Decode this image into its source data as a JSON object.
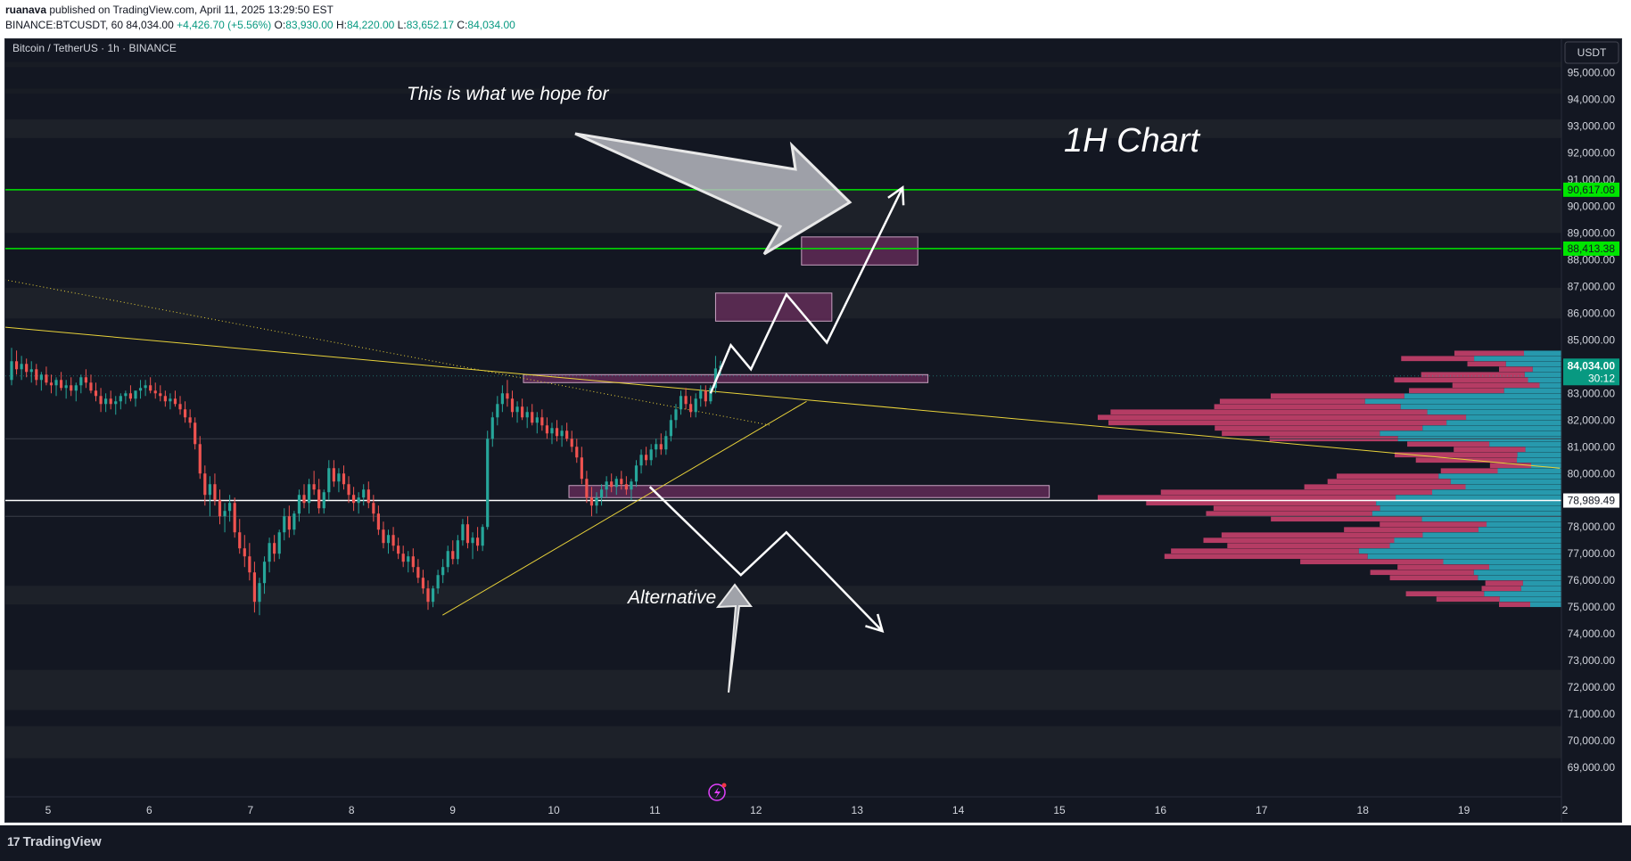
{
  "header": {
    "author": "ruanava",
    "published_text": "published on TradingView.com, April 11, 2025 13:29:50 EST",
    "symbol": "BINANCE:BTCUSDT, 60",
    "last": "84,034.00",
    "change": "+4,426.70 (+5.56%)",
    "o_label": "O:",
    "o": "83,930.00",
    "h_label": "H:",
    "h": "84,220.00",
    "l_label": "L:",
    "l": "83,652.17",
    "c_label": "C:",
    "c": "84,034.00"
  },
  "legend": {
    "title": "Bitcoin / TetherUS · 1h · BINANCE"
  },
  "currency_button": "USDT",
  "footer": {
    "brand": "TradingView",
    "mark": "17"
  },
  "annotations": {
    "hope": "This is what we hope for",
    "chart_label": "1H Chart",
    "alternative": "Alternative"
  },
  "price_tags": {
    "line1": "90,617.08",
    "line2": "88,413.38",
    "current": "84,034.00",
    "countdown": "30:12",
    "white_line": "78,989.49"
  },
  "colors": {
    "background": "#131722",
    "up": "#26a69a",
    "down": "#ef5350",
    "green_line": "#00e600",
    "trendline": "#e8d23a",
    "zone": "#6b2d5e",
    "vp_up": "#2aa7bd",
    "vp_down": "#c8406b"
  },
  "chart_data": {
    "type": "candlestick",
    "symbol": "BTCUSDT",
    "interval": "1h",
    "ylim": [
      68500,
      96000
    ],
    "y_ticks": [
      69000,
      70000,
      71000,
      72000,
      73000,
      74000,
      75000,
      76000,
      77000,
      78000,
      79000,
      80000,
      81000,
      82000,
      83000,
      84000,
      85000,
      86000,
      87000,
      88000,
      89000,
      90000,
      91000,
      92000,
      93000,
      94000,
      95000
    ],
    "y_tick_labels": [
      "69,000.00",
      "70,000.00",
      "71,000.00",
      "72,000.00",
      "73,000.00",
      "74,000.00",
      "75,000.00",
      "76,000.00",
      "77,000.00",
      "78,000.00",
      "79,000.00",
      "80,000.00",
      "81,000.00",
      "82,000.00",
      "83,000.00",
      "84,000.00",
      "85,000.00",
      "86,000.00",
      "87,000.00",
      "88,000.00",
      "89,000.00",
      "90,000.00",
      "91,000.00",
      "92,000.00",
      "93,000.00",
      "94,000.00",
      "95,000.00"
    ],
    "x_ticks": [
      "5",
      "6",
      "7",
      "8",
      "9",
      "10",
      "11",
      "12",
      "13",
      "14",
      "15",
      "16",
      "17",
      "18",
      "19",
      "2"
    ],
    "horizontal_lines": [
      {
        "value": 90617.08,
        "color": "green"
      },
      {
        "value": 88413.38,
        "color": "green"
      },
      {
        "value": 78989.49,
        "color": "white"
      }
    ],
    "zones": [
      {
        "x0": 12.45,
        "x1": 13.6,
        "y0": 87800,
        "y1": 88850
      },
      {
        "x0": 11.6,
        "x1": 12.75,
        "y0": 85700,
        "y1": 86750
      },
      {
        "x0": 9.7,
        "x1": 13.7,
        "y0": 83400,
        "y1": 83700
      },
      {
        "x0": 10.15,
        "x1": 14.9,
        "y0": 79100,
        "y1": 79550
      }
    ],
    "trendlines": [
      {
        "x0": 4.5,
        "y0": 85500,
        "x1": 19.95,
        "y1": 80200
      },
      {
        "x0": 8.9,
        "y0": 74700,
        "x1": 12.5,
        "y1": 82700
      },
      {
        "x0": 4.5,
        "y0": 87300,
        "x1": 12.15,
        "y1": 81800,
        "style": "dotted"
      }
    ],
    "projections": {
      "bullish": [
        [
          11.55,
          83000
        ],
        [
          11.75,
          84800
        ],
        [
          11.95,
          83900
        ],
        [
          12.3,
          86700
        ],
        [
          12.7,
          84900
        ],
        [
          13.45,
          90700
        ]
      ],
      "bearish": [
        [
          10.95,
          79500
        ],
        [
          11.85,
          76200
        ],
        [
          12.3,
          77800
        ],
        [
          13.25,
          74100
        ]
      ]
    },
    "candles_ohlc": [
      [
        83500,
        84700,
        83300,
        84200
      ],
      [
        84200,
        84600,
        83700,
        83900
      ],
      [
        83900,
        84400,
        83500,
        84100
      ],
      [
        84100,
        84300,
        83600,
        83800
      ],
      [
        83800,
        84200,
        83400,
        83900
      ],
      [
        83900,
        84100,
        83300,
        83500
      ],
      [
        83500,
        83800,
        83100,
        83700
      ],
      [
        83700,
        84000,
        83300,
        83400
      ],
      [
        83400,
        83700,
        83000,
        83300
      ],
      [
        83300,
        83600,
        82900,
        83500
      ],
      [
        83500,
        83800,
        83100,
        83200
      ],
      [
        83200,
        83500,
        82800,
        83300
      ],
      [
        83300,
        83600,
        82900,
        83100
      ],
      [
        83100,
        83400,
        82700,
        83300
      ],
      [
        83300,
        83700,
        83000,
        83600
      ],
      [
        83600,
        83900,
        83200,
        83400
      ],
      [
        83400,
        83700,
        83000,
        83100
      ],
      [
        83100,
        83400,
        82700,
        82900
      ],
      [
        82900,
        83200,
        82300,
        82600
      ],
      [
        82600,
        83000,
        82300,
        82800
      ],
      [
        82800,
        83100,
        82400,
        82600
      ],
      [
        82600,
        82900,
        82200,
        82700
      ],
      [
        82700,
        83000,
        82400,
        82900
      ],
      [
        82900,
        83100,
        82600,
        83000
      ],
      [
        83000,
        83300,
        82700,
        82800
      ],
      [
        82800,
        83100,
        82500,
        83100
      ],
      [
        83100,
        83500,
        82800,
        83200
      ],
      [
        83200,
        83500,
        82900,
        83300
      ],
      [
        83300,
        83600,
        83000,
        83100
      ],
      [
        83100,
        83400,
        82800,
        83000
      ],
      [
        83000,
        83300,
        82700,
        82900
      ],
      [
        82900,
        83100,
        82500,
        82700
      ],
      [
        82700,
        83000,
        82400,
        82800
      ],
      [
        82800,
        83100,
        82500,
        82600
      ],
      [
        82600,
        82900,
        82200,
        82400
      ],
      [
        82400,
        82700,
        81900,
        82100
      ],
      [
        82100,
        82400,
        81700,
        81900
      ],
      [
        81900,
        82100,
        80900,
        81100
      ],
      [
        81100,
        81400,
        79800,
        80000
      ],
      [
        80000,
        80300,
        78800,
        79200
      ],
      [
        79200,
        79900,
        78400,
        79600
      ],
      [
        79600,
        80000,
        78800,
        79000
      ],
      [
        79000,
        79400,
        78100,
        78400
      ],
      [
        78400,
        78900,
        77800,
        78600
      ],
      [
        78600,
        79200,
        78200,
        78900
      ],
      [
        78900,
        79100,
        77600,
        77800
      ],
      [
        77800,
        78300,
        77000,
        77200
      ],
      [
        77200,
        77700,
        76500,
        76900
      ],
      [
        76900,
        77400,
        76000,
        76300
      ],
      [
        76300,
        76700,
        74800,
        75200
      ],
      [
        75200,
        76100,
        74700,
        75900
      ],
      [
        75900,
        76900,
        75500,
        76700
      ],
      [
        76700,
        77600,
        76300,
        77400
      ],
      [
        77400,
        77700,
        76700,
        77000
      ],
      [
        77000,
        77900,
        76800,
        77800
      ],
      [
        77800,
        78700,
        77500,
        78400
      ],
      [
        78400,
        78800,
        77600,
        77900
      ],
      [
        77900,
        78600,
        77700,
        78500
      ],
      [
        78500,
        79400,
        78200,
        79200
      ],
      [
        79200,
        79600,
        78700,
        78900
      ],
      [
        78900,
        79800,
        78500,
        79600
      ],
      [
        79600,
        80100,
        79200,
        79400
      ],
      [
        79400,
        79800,
        78500,
        78700
      ],
      [
        78700,
        79400,
        78500,
        79300
      ],
      [
        79300,
        80500,
        79000,
        80200
      ],
      [
        80200,
        80500,
        79500,
        79700
      ],
      [
        79700,
        80200,
        79300,
        80000
      ],
      [
        80000,
        80300,
        79400,
        79600
      ],
      [
        79600,
        79900,
        78900,
        79200
      ],
      [
        79200,
        79500,
        78600,
        78900
      ],
      [
        78900,
        79300,
        78500,
        79100
      ],
      [
        79100,
        79600,
        78800,
        79400
      ],
      [
        79400,
        79700,
        78700,
        78900
      ],
      [
        78900,
        79200,
        78200,
        78500
      ],
      [
        78500,
        78800,
        77700,
        77900
      ],
      [
        77900,
        78200,
        77200,
        77400
      ],
      [
        77400,
        77900,
        77000,
        77700
      ],
      [
        77700,
        78000,
        77100,
        77300
      ],
      [
        77300,
        77600,
        76800,
        77000
      ],
      [
        77000,
        77300,
        76500,
        76700
      ],
      [
        76700,
        77100,
        76300,
        76900
      ],
      [
        76900,
        77200,
        76300,
        76500
      ],
      [
        76500,
        76800,
        75900,
        76100
      ],
      [
        76100,
        76400,
        75500,
        75700
      ],
      [
        75700,
        76000,
        74900,
        75200
      ],
      [
        75200,
        75800,
        75000,
        75700
      ],
      [
        75700,
        76400,
        75500,
        76200
      ],
      [
        76200,
        76800,
        75900,
        76500
      ],
      [
        76500,
        77300,
        76300,
        77100
      ],
      [
        77100,
        77500,
        76600,
        76800
      ],
      [
        76800,
        77700,
        76600,
        77500
      ],
      [
        77500,
        78300,
        77300,
        78100
      ],
      [
        78100,
        78400,
        77200,
        77400
      ],
      [
        77400,
        77800,
        76800,
        77600
      ],
      [
        77600,
        78000,
        77100,
        77300
      ],
      [
        77300,
        78100,
        77100,
        78000
      ],
      [
        78000,
        81600,
        77900,
        81300
      ],
      [
        81300,
        82300,
        81000,
        82100
      ],
      [
        82100,
        82900,
        81800,
        82600
      ],
      [
        82600,
        83300,
        82300,
        83000
      ],
      [
        83000,
        83500,
        82500,
        82800
      ],
      [
        82800,
        83100,
        82100,
        82300
      ],
      [
        82300,
        82700,
        81900,
        82500
      ],
      [
        82500,
        82800,
        82000,
        82100
      ],
      [
        82100,
        82500,
        81700,
        82300
      ],
      [
        82300,
        82600,
        81800,
        81900
      ],
      [
        81900,
        82300,
        81500,
        82100
      ],
      [
        82100,
        82400,
        81600,
        81800
      ],
      [
        81800,
        82100,
        81300,
        81500
      ],
      [
        81500,
        81900,
        81100,
        81700
      ],
      [
        81700,
        82000,
        81200,
        81400
      ],
      [
        81400,
        81800,
        81000,
        81600
      ],
      [
        81600,
        81900,
        81200,
        81300
      ],
      [
        81300,
        81600,
        80800,
        81000
      ],
      [
        81000,
        81300,
        80400,
        80600
      ],
      [
        80600,
        81000,
        79600,
        79800
      ],
      [
        79800,
        80100,
        78900,
        79100
      ],
      [
        79100,
        79500,
        78400,
        78800
      ],
      [
        78800,
        79300,
        78500,
        79100
      ],
      [
        79100,
        79600,
        78800,
        79400
      ],
      [
        79400,
        79900,
        79100,
        79700
      ],
      [
        79700,
        80000,
        79300,
        79500
      ],
      [
        79500,
        79900,
        79200,
        79800
      ],
      [
        79800,
        80100,
        79400,
        79600
      ],
      [
        79600,
        79900,
        79200,
        79400
      ],
      [
        79400,
        79800,
        79000,
        79700
      ],
      [
        79700,
        80500,
        79500,
        80300
      ],
      [
        80300,
        80900,
        80000,
        80700
      ],
      [
        80700,
        81000,
        80300,
        80500
      ],
      [
        80500,
        81100,
        80300,
        80900
      ],
      [
        80900,
        81300,
        80600,
        81100
      ],
      [
        81100,
        81500,
        80700,
        80900
      ],
      [
        80900,
        81600,
        80700,
        81400
      ],
      [
        81400,
        82200,
        81200,
        82000
      ],
      [
        82000,
        82600,
        81700,
        82400
      ],
      [
        82400,
        83100,
        82200,
        82900
      ],
      [
        82900,
        83200,
        82400,
        82600
      ],
      [
        82600,
        82900,
        82100,
        82300
      ],
      [
        82300,
        83000,
        82100,
        82800
      ],
      [
        82800,
        83300,
        82500,
        83100
      ],
      [
        83100,
        83300,
        82500,
        82700
      ],
      [
        82700,
        83300,
        82600,
        83200
      ],
      [
        83200,
        84400,
        83000,
        83930
      ],
      [
        83930,
        84220,
        83652,
        84034
      ]
    ],
    "volume_profile_note": "Visible range volume profile anchored to right edge, rows from 75,000 to 84,500"
  }
}
